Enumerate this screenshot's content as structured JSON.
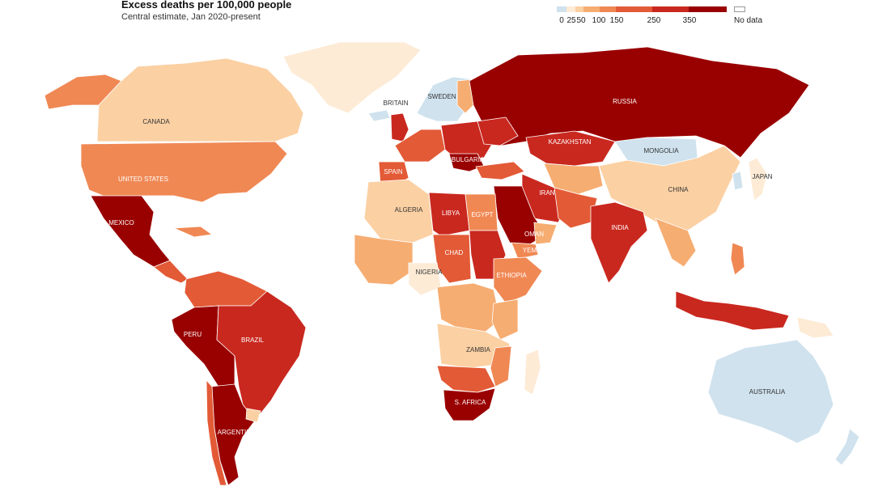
{
  "title": "Excess deaths per 100,000 people",
  "subtitle": "Central estimate, Jan 2020-present",
  "legend": {
    "bins": [
      {
        "label": "0",
        "from": -20,
        "to": 0,
        "color": "#cfe2ee"
      },
      {
        "label": "25",
        "from": 0,
        "to": 25,
        "color": "#fdebd6"
      },
      {
        "label": "50",
        "from": 25,
        "to": 50,
        "color": "#fbd0a3"
      },
      {
        "label": "100",
        "from": 50,
        "to": 100,
        "color": "#f6ad72"
      },
      {
        "label": "150",
        "from": 100,
        "to": 150,
        "color": "#f08854"
      },
      {
        "label": "250",
        "from": 150,
        "to": 250,
        "color": "#e35a36"
      },
      {
        "label": "350",
        "from": 250,
        "to": 350,
        "color": "#c9281f"
      },
      {
        "label": "",
        "from": 350,
        "to": 450,
        "color": "#990000"
      }
    ],
    "no_data_label": "No data",
    "no_data_color": "#ffffff"
  },
  "map_labels": {
    "russia": "RUSSIA",
    "canada": "CANADA",
    "united_states": "UNITED STATES",
    "mexico": "MEXICO",
    "brazil": "BRAZIL",
    "peru": "PERU",
    "argentina": "ARGENTINA",
    "britain": "BRITAIN",
    "sweden": "SWEDEN",
    "spain": "SPAIN",
    "bulgaria": "BULGARIA",
    "kazakhstan": "KAZAKHSTAN",
    "mongolia": "MONGOLIA",
    "china": "CHINA",
    "japan": "JAPAN",
    "iran": "IRAN",
    "india": "INDIA",
    "algeria": "ALGERIA",
    "libya": "LIBYA",
    "egypt": "EGYPT",
    "oman": "OMAN",
    "yemen": "YEMEN",
    "chad": "CHAD",
    "nigeria": "NIGERIA",
    "ethiopia": "ETHIOPIA",
    "zambia": "ZAMBIA",
    "s_africa": "S. AFRICA",
    "australia": "AUSTRALIA"
  },
  "colors": {
    "bin_0": "#cfe2ee",
    "bin_25": "#fdebd6",
    "bin_50": "#fbd0a3",
    "bin_100": "#f6ad72",
    "bin_150": "#f08854",
    "bin_250": "#e35a36",
    "bin_350": "#c9281f",
    "bin_max": "#990000"
  }
}
